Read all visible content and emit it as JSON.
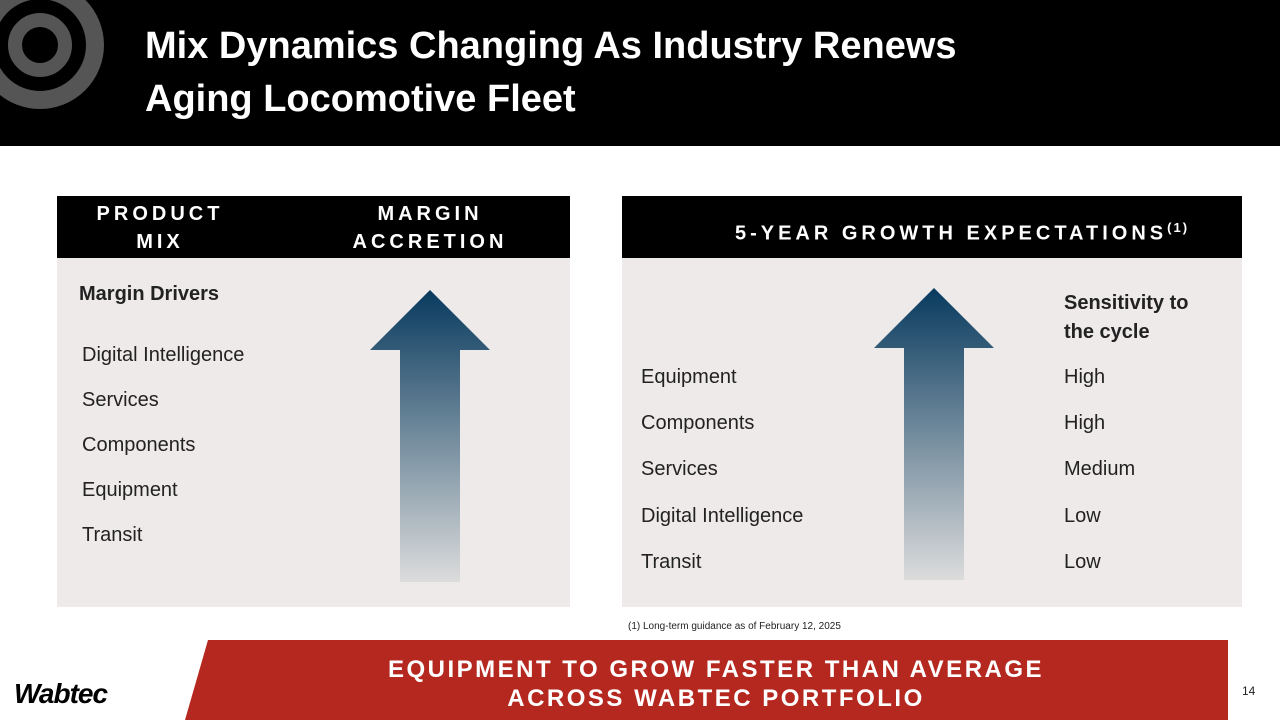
{
  "header": {
    "title_lines": [
      "Mix Dynamics Changing As Industry Renews",
      "Aging Locomotive Fleet"
    ]
  },
  "left_panel": {
    "header_left": [
      "PRODUCT",
      "MIX"
    ],
    "header_right": [
      "MARGIN",
      "ACCRETION"
    ],
    "subtitle": "Margin Drivers",
    "items": [
      "Digital Intelligence",
      "Services",
      "Components",
      "Equipment",
      "Transit"
    ]
  },
  "right_panel": {
    "header": "5-YEAR GROWTH EXPECTATIONS",
    "header_note": "(1)",
    "column_header": [
      "Sensitivity to",
      "the cycle"
    ],
    "rows": [
      [
        "Equipment",
        "High"
      ],
      [
        "Components",
        "High"
      ],
      [
        "Services",
        "Medium"
      ],
      [
        "Digital Intelligence",
        "Low"
      ],
      [
        "Transit",
        "Low"
      ]
    ]
  },
  "footnote": "(1) Long-term guidance as of February 12, 2025",
  "banner": {
    "lines": [
      "EQUIPMENT TO GROW FASTER THAN AVERAGE",
      "ACROSS WABTEC PORTFOLIO"
    ]
  },
  "footer": {
    "logo": "Wabtec",
    "page_number": "14"
  }
}
